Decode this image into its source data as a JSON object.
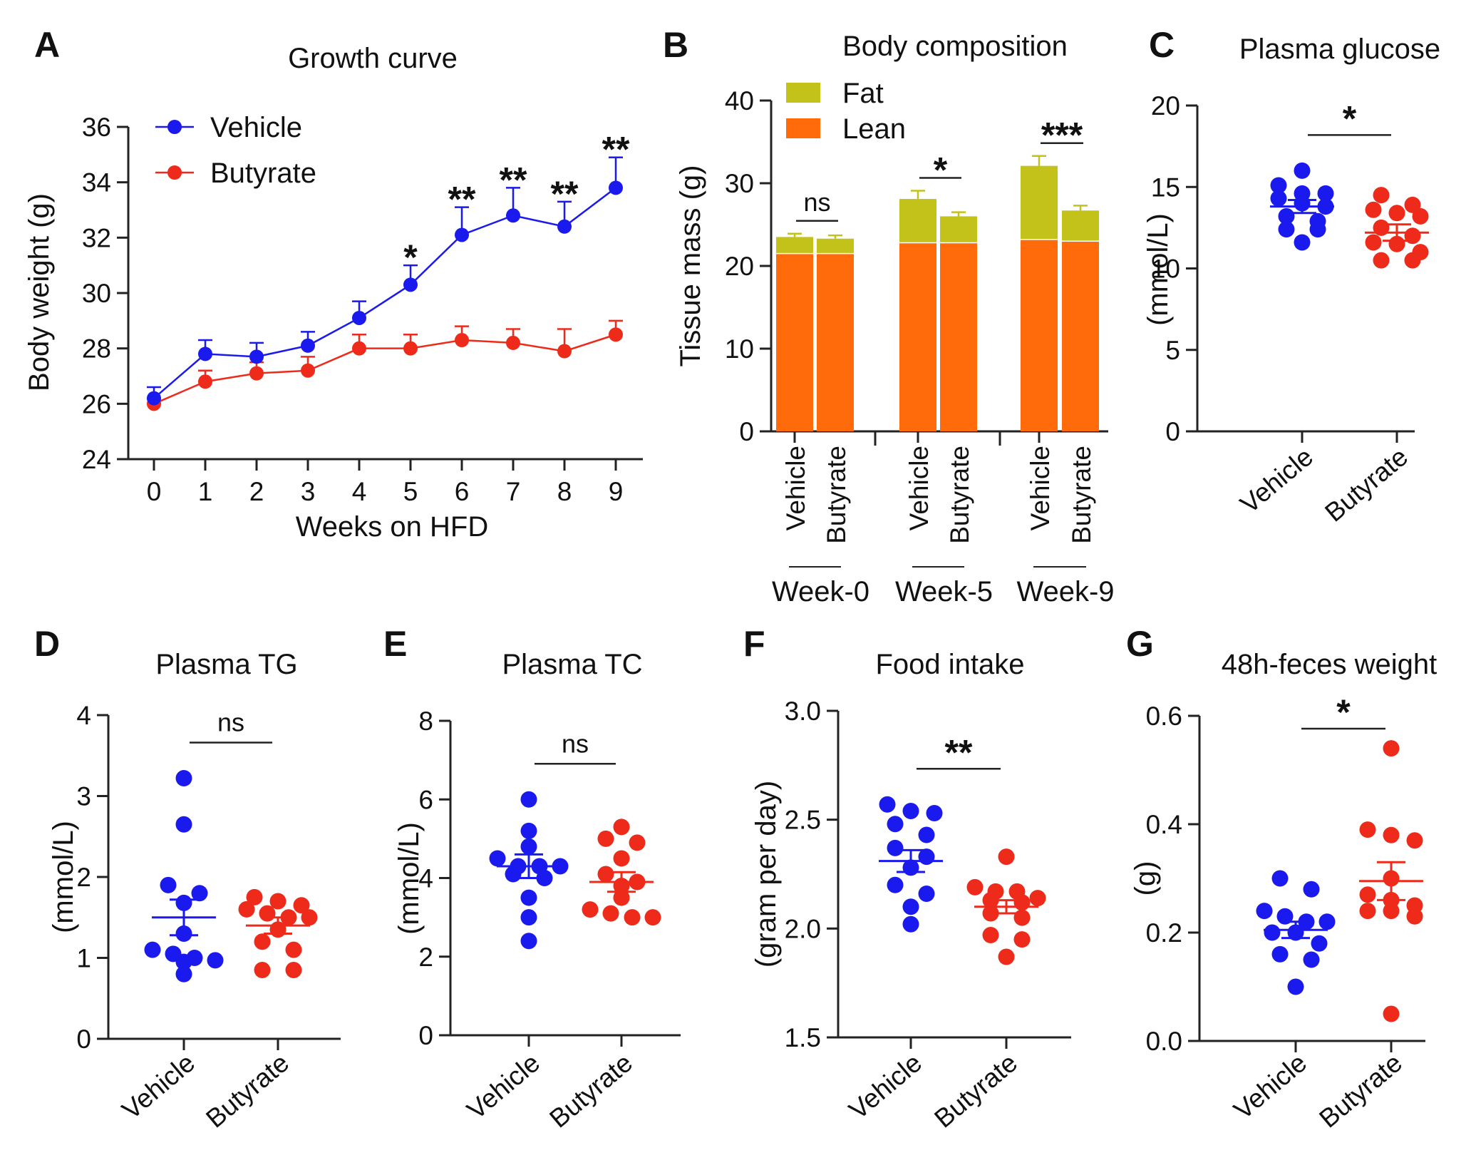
{
  "colors": {
    "vehicle": "#1a1aee",
    "butyrate": "#ee2a1a",
    "fat": "#c2c21a",
    "lean": "#ff6a0a",
    "axis": "#222222"
  },
  "chart_data": [
    {
      "id": "A",
      "letter": "A",
      "type": "line",
      "title": "Growth curve",
      "xlabel": "Weeks on HFD",
      "ylabel": "Body weight (g)",
      "x": [
        0,
        1,
        2,
        3,
        4,
        5,
        6,
        7,
        8,
        9
      ],
      "x_tick_labels": [
        "0",
        "1",
        "2",
        "3",
        "4",
        "5",
        "6",
        "7",
        "8",
        "9"
      ],
      "ylim": [
        24,
        36
      ],
      "yticks": [
        24,
        26,
        28,
        30,
        32,
        34,
        36
      ],
      "y_tick_labels": [
        "24",
        "26",
        "28",
        "30",
        "32",
        "34",
        "36"
      ],
      "legend": "top-left",
      "series": [
        {
          "name": "Vehicle",
          "key": "vehicle",
          "values": [
            26.2,
            27.8,
            27.7,
            28.1,
            29.1,
            30.3,
            32.1,
            32.8,
            32.4,
            33.8
          ],
          "errors": [
            0.4,
            0.5,
            0.5,
            0.5,
            0.6,
            0.7,
            1.0,
            1.0,
            0.9,
            1.1
          ]
        },
        {
          "name": "Butyrate",
          "key": "butyrate",
          "values": [
            26.0,
            26.8,
            27.1,
            27.2,
            28.0,
            28.0,
            28.3,
            28.2,
            27.9,
            28.5
          ],
          "errors": [
            0.2,
            0.4,
            0.4,
            0.5,
            0.5,
            0.5,
            0.5,
            0.5,
            0.8,
            0.5
          ]
        }
      ],
      "annotations": [
        {
          "x": 5,
          "text": "*"
        },
        {
          "x": 6,
          "text": "**"
        },
        {
          "x": 7,
          "text": "**"
        },
        {
          "x": 8,
          "text": "**"
        },
        {
          "x": 9,
          "text": "**"
        }
      ]
    },
    {
      "id": "B",
      "letter": "B",
      "type": "bar",
      "title": "Body composition",
      "ylabel": "Tissue mass (g)",
      "ylim": [
        0,
        40
      ],
      "yticks": [
        0,
        10,
        20,
        30,
        40
      ],
      "y_tick_labels": [
        "0",
        "10",
        "20",
        "30",
        "40"
      ],
      "legend": "top-left",
      "legend_entries": [
        {
          "name": "Fat",
          "key": "fat"
        },
        {
          "name": "Lean",
          "key": "lean"
        }
      ],
      "groups": [
        {
          "name": "Week-0",
          "bars": [
            {
              "label": "Vehicle",
              "lean": 21.5,
              "fat": 2.0,
              "error": 0.4
            },
            {
              "label": "Butyrate",
              "lean": 21.5,
              "fat": 1.8,
              "error": 0.4
            }
          ],
          "annotation": "ns"
        },
        {
          "name": "Week-5",
          "bars": [
            {
              "label": "Vehicle",
              "lean": 22.8,
              "fat": 5.3,
              "error": 1.0
            },
            {
              "label": "Butyrate",
              "lean": 22.8,
              "fat": 3.2,
              "error": 0.5
            }
          ],
          "annotation": "*"
        },
        {
          "name": "Week-9",
          "bars": [
            {
              "label": "Vehicle",
              "lean": 23.2,
              "fat": 8.9,
              "error": 1.2
            },
            {
              "label": "Butyrate",
              "lean": 23.0,
              "fat": 3.7,
              "error": 0.6
            }
          ],
          "annotation": "***"
        }
      ]
    },
    {
      "id": "C",
      "letter": "C",
      "type": "scatter",
      "title": "Plasma glucose",
      "ylabel": "(mmol/L)",
      "ylim": [
        0,
        20
      ],
      "yticks": [
        0,
        5,
        10,
        15,
        20
      ],
      "y_tick_labels": [
        "0",
        "5",
        "10",
        "15",
        "20"
      ],
      "categories": [
        "Vehicle",
        "Butyrate"
      ],
      "annotation": "*",
      "groups": [
        {
          "name": "Vehicle",
          "key": "vehicle",
          "mean": 13.8,
          "sem": 0.4,
          "points": [
            16.0,
            15.1,
            14.6,
            14.6,
            14.3,
            14.0,
            13.8,
            13.2,
            12.9,
            12.4,
            12.4,
            11.6
          ]
        },
        {
          "name": "Butyrate",
          "key": "butyrate",
          "mean": 12.2,
          "sem": 0.5,
          "points": [
            14.5,
            13.9,
            13.6,
            13.4,
            13.2,
            12.5,
            12.0,
            11.6,
            11.5,
            11.0,
            10.5,
            10.5
          ]
        }
      ]
    },
    {
      "id": "D",
      "letter": "D",
      "type": "scatter",
      "title": "Plasma TG",
      "ylabel": "(mmol/L)",
      "ylim": [
        0,
        4
      ],
      "yticks": [
        0,
        1,
        2,
        3,
        4
      ],
      "y_tick_labels": [
        "0",
        "1",
        "2",
        "3",
        "4"
      ],
      "categories": [
        "Vehicle",
        "Butyrate"
      ],
      "annotation": "ns",
      "groups": [
        {
          "name": "Vehicle",
          "key": "vehicle",
          "mean": 1.5,
          "sem": 0.22,
          "points": [
            3.22,
            2.65,
            1.9,
            1.8,
            1.68,
            1.3,
            1.1,
            1.05,
            1.0,
            0.97,
            0.95,
            0.8
          ]
        },
        {
          "name": "Butyrate",
          "key": "butyrate",
          "mean": 1.4,
          "sem": 0.1,
          "points": [
            1.75,
            1.7,
            1.65,
            1.6,
            1.55,
            1.5,
            1.5,
            1.35,
            1.2,
            1.1,
            0.85,
            0.85
          ]
        }
      ]
    },
    {
      "id": "E",
      "letter": "E",
      "type": "scatter",
      "title": "Plasma TC",
      "ylabel": "(mmol/L)",
      "ylim": [
        0,
        8
      ],
      "yticks": [
        0,
        2,
        4,
        6,
        8
      ],
      "y_tick_labels": [
        "0",
        "2",
        "4",
        "6",
        "8"
      ],
      "categories": [
        "Vehicle",
        "Butyrate"
      ],
      "annotation": "ns",
      "groups": [
        {
          "name": "Vehicle",
          "key": "vehicle",
          "mean": 4.3,
          "sem": 0.3,
          "points": [
            6.0,
            5.2,
            4.8,
            4.5,
            4.3,
            4.3,
            4.3,
            4.1,
            4.0,
            3.5,
            3.0,
            2.4
          ]
        },
        {
          "name": "Butyrate",
          "key": "butyrate",
          "mean": 3.9,
          "sem": 0.25,
          "points": [
            5.3,
            5.0,
            4.9,
            4.5,
            4.1,
            3.9,
            3.8,
            3.5,
            3.2,
            3.1,
            3.0,
            3.0
          ]
        }
      ]
    },
    {
      "id": "F",
      "letter": "F",
      "type": "scatter",
      "title": "Food intake",
      "ylabel": "(gram per day)",
      "ylim": [
        1.5,
        3.0
      ],
      "yticks": [
        1.5,
        2.0,
        2.5,
        3.0
      ],
      "y_tick_labels": [
        "1.5",
        "2.0",
        "2.5",
        "3.0"
      ],
      "categories": [
        "Vehicle",
        "Butyrate"
      ],
      "annotation": "**",
      "groups": [
        {
          "name": "Vehicle",
          "key": "vehicle",
          "mean": 2.31,
          "sem": 0.05,
          "points": [
            2.57,
            2.54,
            2.53,
            2.48,
            2.43,
            2.37,
            2.33,
            2.28,
            2.2,
            2.16,
            2.1,
            2.02
          ]
        },
        {
          "name": "Butyrate",
          "key": "butyrate",
          "mean": 2.1,
          "sem": 0.03,
          "points": [
            2.33,
            2.19,
            2.17,
            2.17,
            2.14,
            2.13,
            2.12,
            2.07,
            2.05,
            1.97,
            1.95,
            1.87
          ]
        }
      ]
    },
    {
      "id": "G",
      "letter": "G",
      "type": "scatter",
      "title": "48h-feces weight",
      "ylabel": "(g)",
      "ylim": [
        0.0,
        0.6
      ],
      "yticks": [
        0.0,
        0.2,
        0.4,
        0.6
      ],
      "y_tick_labels": [
        "0.0",
        "0.2",
        "0.4",
        "0.6"
      ],
      "categories": [
        "Vehicle",
        "Butyrate"
      ],
      "annotation": "*",
      "groups": [
        {
          "name": "Vehicle",
          "key": "vehicle",
          "mean": 0.205,
          "sem": 0.015,
          "points": [
            0.3,
            0.28,
            0.24,
            0.23,
            0.22,
            0.22,
            0.2,
            0.2,
            0.18,
            0.16,
            0.15,
            0.1
          ]
        },
        {
          "name": "Butyrate",
          "key": "butyrate",
          "mean": 0.295,
          "sem": 0.035,
          "points": [
            0.54,
            0.39,
            0.38,
            0.37,
            0.3,
            0.27,
            0.26,
            0.25,
            0.24,
            0.24,
            0.23,
            0.05
          ]
        }
      ]
    }
  ]
}
